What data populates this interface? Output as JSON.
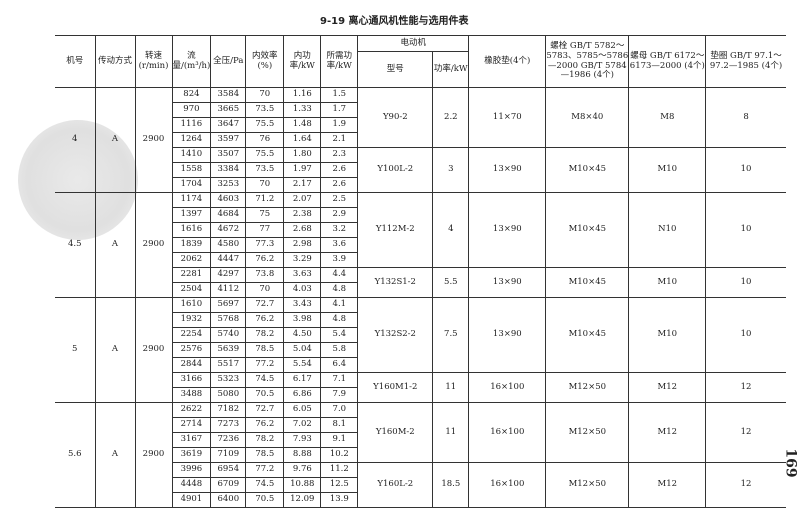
{
  "title": "9-19  离心通风机性能与选用件表",
  "page_number": "169",
  "headers": {
    "fan_no": "机号",
    "drive": "传动方式",
    "speed": "转速(r/min)",
    "flow": "流量/(m³/h)",
    "pressure": "全压/Pa",
    "efficiency": "内效率(%)",
    "internal_power": "内功率/kW",
    "required_power": "所需功率/kW",
    "motor": "电动机",
    "motor_model": "型号",
    "motor_power": "功率/kW",
    "rubber_pad": "橡胶垫(4个)",
    "bolt": "螺栓 GB/T 5782～5783、5785～5786—2000 GB/T 5784—1986 (4个)",
    "nut": "螺母 GB/T 6172～6173—2000 (4个)",
    "washer": "垫圈 GB/T 97.1～97.2—1985 (4个)"
  },
  "fans": [
    {
      "no": "4",
      "drive": "A",
      "speed": "2900",
      "rows": [
        [
          "824",
          "3584",
          "70",
          "1.16",
          "1.5"
        ],
        [
          "970",
          "3665",
          "73.5",
          "1.33",
          "1.7"
        ],
        [
          "1116",
          "3647",
          "75.5",
          "1.48",
          "1.9"
        ],
        [
          "1264",
          "3597",
          "76",
          "1.64",
          "2.1"
        ],
        [
          "1410",
          "3507",
          "75.5",
          "1.80",
          "2.3"
        ],
        [
          "1558",
          "3384",
          "73.5",
          "1.97",
          "2.6"
        ],
        [
          "1704",
          "3253",
          "70",
          "2.17",
          "2.6"
        ]
      ]
    },
    {
      "no": "4.5",
      "drive": "A",
      "speed": "2900",
      "rows": [
        [
          "1174",
          "4603",
          "71.2",
          "2.07",
          "2.5"
        ],
        [
          "1397",
          "4684",
          "75",
          "2.38",
          "2.9"
        ],
        [
          "1616",
          "4672",
          "77",
          "2.68",
          "3.2"
        ],
        [
          "1839",
          "4580",
          "77.3",
          "2.98",
          "3.6"
        ],
        [
          "2062",
          "4447",
          "76.2",
          "3.29",
          "3.9"
        ],
        [
          "2281",
          "4297",
          "73.8",
          "3.63",
          "4.4"
        ],
        [
          "2504",
          "4112",
          "70",
          "4.03",
          "4.8"
        ]
      ]
    },
    {
      "no": "5",
      "drive": "A",
      "speed": "2900",
      "rows": [
        [
          "1610",
          "5697",
          "72.7",
          "3.43",
          "4.1"
        ],
        [
          "1932",
          "5768",
          "76.2",
          "3.98",
          "4.8"
        ],
        [
          "2254",
          "5740",
          "78.2",
          "4.50",
          "5.4"
        ],
        [
          "2576",
          "5639",
          "78.5",
          "5.04",
          "5.8"
        ],
        [
          "2844",
          "5517",
          "77.2",
          "5.54",
          "6.4"
        ],
        [
          "3166",
          "5323",
          "74.5",
          "6.17",
          "7.1"
        ],
        [
          "3488",
          "5080",
          "70.5",
          "6.86",
          "7.9"
        ]
      ]
    },
    {
      "no": "5.6",
      "drive": "A",
      "speed": "2900",
      "rows": [
        [
          "2622",
          "7182",
          "72.7",
          "6.05",
          "7.0"
        ],
        [
          "2714",
          "7273",
          "76.2",
          "7.02",
          "8.1"
        ],
        [
          "3167",
          "7236",
          "78.2",
          "7.93",
          "9.1"
        ],
        [
          "3619",
          "7109",
          "78.5",
          "8.88",
          "10.2"
        ],
        [
          "3996",
          "6954",
          "77.2",
          "9.76",
          "11.2"
        ],
        [
          "4448",
          "6709",
          "74.5",
          "10.88",
          "12.5"
        ],
        [
          "4901",
          "6400",
          "70.5",
          "12.09",
          "13.9"
        ]
      ]
    }
  ],
  "motors": [
    {
      "model": "Y90-2",
      "power": "2.2",
      "pad": "11×70",
      "bolt": "M8×40",
      "nut": "M8",
      "washer": "8",
      "span": 4
    },
    {
      "model": "Y100L-2",
      "power": "3",
      "pad": "13×90",
      "bolt": "M10×45",
      "nut": "M10",
      "washer": "10",
      "span": 3
    },
    {
      "model": "Y112M-2",
      "power": "4",
      "pad": "13×90",
      "bolt": "M10×45",
      "nut": "N10",
      "washer": "10",
      "span": 5
    },
    {
      "model": "Y132S1-2",
      "power": "5.5",
      "pad": "13×90",
      "bolt": "M10×45",
      "nut": "M10",
      "washer": "10",
      "span": 2
    },
    {
      "model": "Y132S2-2",
      "power": "7.5",
      "pad": "13×90",
      "bolt": "M10×45",
      "nut": "M10",
      "washer": "10",
      "span": 5
    },
    {
      "model": "Y160M1-2",
      "power": "11",
      "pad": "16×100",
      "bolt": "M12×50",
      "nut": "M12",
      "washer": "12",
      "span": 2
    },
    {
      "model": "Y160M-2",
      "power": "11",
      "pad": "16×100",
      "bolt": "M12×50",
      "nut": "M12",
      "washer": "12",
      "span": 4
    },
    {
      "model": "Y160L-2",
      "power": "18.5",
      "pad": "16×100",
      "bolt": "M12×50",
      "nut": "M12",
      "washer": "12",
      "span": 3
    }
  ]
}
